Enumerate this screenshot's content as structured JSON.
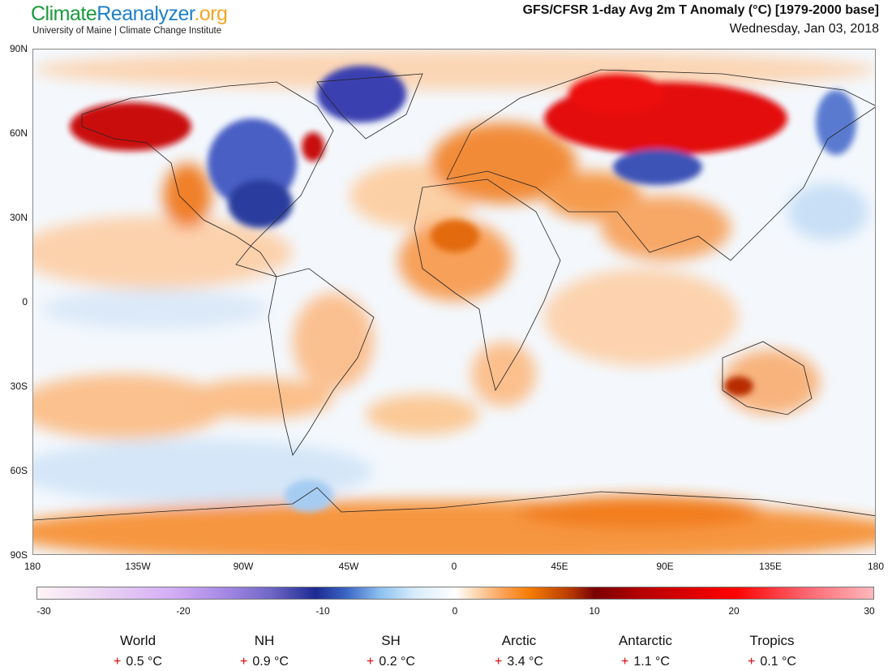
{
  "header": {
    "logo": {
      "part1": "Climate",
      "part2": "Reanalyzer",
      ".org": ".org"
    },
    "subtitle": "University of Maine | Climate Change Institute",
    "title": "GFS/CFSR 1-day Avg 2m T Anomaly (°C) [1979-2000 base]",
    "date": "Wednesday, Jan 03, 2018"
  },
  "map": {
    "lat_labels": [
      "90N",
      "60N",
      "30N",
      "0",
      "30S",
      "60S",
      "90S"
    ],
    "lon_labels": [
      "180",
      "135W",
      "90W",
      "45W",
      "0",
      "45E",
      "90E",
      "135E",
      "180"
    ]
  },
  "colorbar": {
    "ticks": [
      "-30",
      "-20",
      "-10",
      "0",
      "10",
      "20",
      "30"
    ],
    "range": [
      -30,
      30
    ],
    "unit": "°C"
  },
  "stats": [
    {
      "name": "World",
      "sign": "+",
      "value": "0.5 °C"
    },
    {
      "name": "NH",
      "sign": "+",
      "value": "0.9 °C"
    },
    {
      "name": "SH",
      "sign": "+",
      "value": "0.2 °C"
    },
    {
      "name": "Arctic",
      "sign": "+",
      "value": "3.4 °C"
    },
    {
      "name": "Antarctic",
      "sign": "+",
      "value": "1.1 °C"
    },
    {
      "name": "Tropics",
      "sign": "+",
      "value": "0.1 °C"
    }
  ],
  "colors": {
    "warm": "#f47b00",
    "hot": "#e00000",
    "cold": "#1c2a92",
    "cool": "#8cc0ef"
  }
}
